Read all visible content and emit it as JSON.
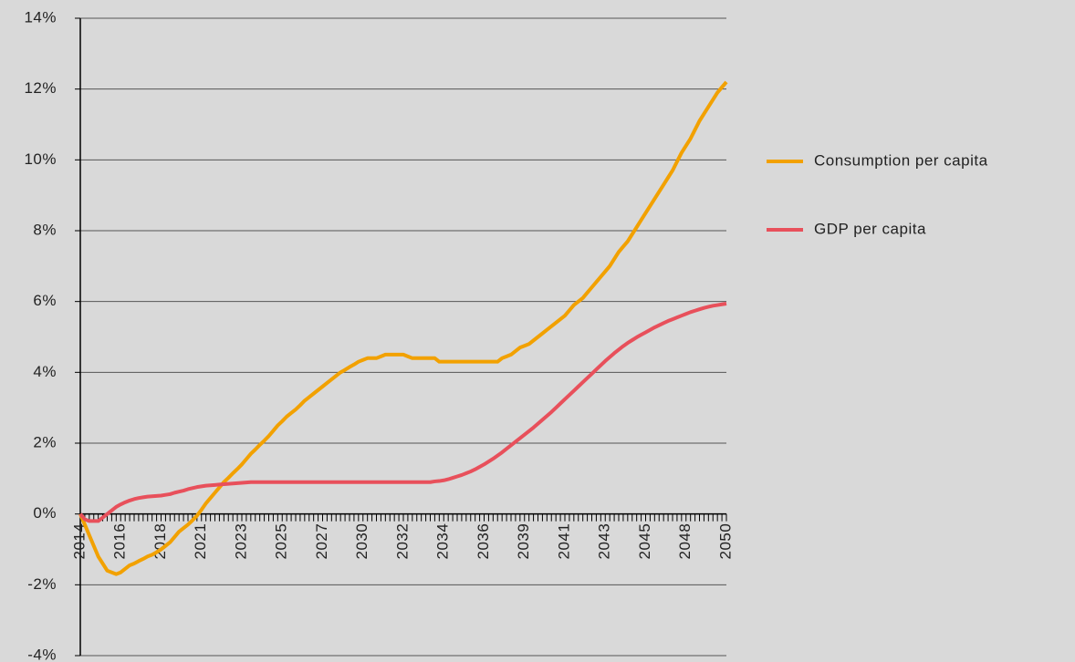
{
  "chart_data": {
    "type": "line",
    "categories": [
      "2014",
      null,
      null,
      null,
      null,
      null,
      null,
      null,
      null,
      "2016",
      null,
      null,
      null,
      null,
      null,
      null,
      null,
      null,
      "2018",
      null,
      null,
      null,
      null,
      null,
      null,
      null,
      null,
      "2021",
      null,
      null,
      null,
      null,
      null,
      null,
      null,
      null,
      "2023",
      null,
      null,
      null,
      null,
      null,
      null,
      null,
      null,
      "2025",
      null,
      null,
      null,
      null,
      null,
      null,
      null,
      null,
      "2027",
      null,
      null,
      null,
      null,
      null,
      null,
      null,
      null,
      "2030",
      null,
      null,
      null,
      null,
      null,
      null,
      null,
      null,
      "2032",
      null,
      null,
      null,
      null,
      null,
      null,
      null,
      null,
      "2034",
      null,
      null,
      null,
      null,
      null,
      null,
      null,
      null,
      "2036",
      null,
      null,
      null,
      null,
      null,
      null,
      null,
      null,
      "2039",
      null,
      null,
      null,
      null,
      null,
      null,
      null,
      null,
      "2041",
      null,
      null,
      null,
      null,
      null,
      null,
      null,
      null,
      "2043",
      null,
      null,
      null,
      null,
      null,
      null,
      null,
      null,
      "2045",
      null,
      null,
      null,
      null,
      null,
      null,
      null,
      null,
      "2048",
      null,
      null,
      null,
      null,
      null,
      null,
      null,
      null,
      "2050"
    ],
    "series": [
      {
        "name": "Consumption per capita",
        "color": "#f2a100",
        "values": [
          0,
          -0.3,
          -0.6,
          -0.9,
          -1.2,
          -1.4,
          -1.6,
          -1.65,
          -1.7,
          -1.65,
          -1.55,
          -1.45,
          -1.4,
          -1.33,
          -1.27,
          -1.2,
          -1.15,
          -1.08,
          -1.0,
          -0.9,
          -0.8,
          -0.65,
          -0.5,
          -0.4,
          -0.3,
          -0.18,
          -0.05,
          0.12,
          0.3,
          0.45,
          0.6,
          0.75,
          0.9,
          1.02,
          1.15,
          1.27,
          1.4,
          1.55,
          1.7,
          1.82,
          1.95,
          2.07,
          2.2,
          2.35,
          2.5,
          2.62,
          2.75,
          2.85,
          2.95,
          3.07,
          3.2,
          3.3,
          3.4,
          3.5,
          3.6,
          3.7,
          3.8,
          3.9,
          4.0,
          4.07,
          4.15,
          4.22,
          4.3,
          4.35,
          4.4,
          4.4,
          4.4,
          4.45,
          4.5,
          4.5,
          4.5,
          4.5,
          4.5,
          4.45,
          4.4,
          4.4,
          4.4,
          4.4,
          4.4,
          4.4,
          4.3,
          4.3,
          4.3,
          4.3,
          4.3,
          4.3,
          4.3,
          4.3,
          4.3,
          4.3,
          4.3,
          4.3,
          4.3,
          4.3,
          4.4,
          4.45,
          4.5,
          4.6,
          4.7,
          4.75,
          4.8,
          4.9,
          5.0,
          5.1,
          5.2,
          5.3,
          5.4,
          5.5,
          5.6,
          5.75,
          5.9,
          6.0,
          6.1,
          6.25,
          6.4,
          6.55,
          6.7,
          6.85,
          7.0,
          7.2,
          7.4,
          7.55,
          7.7,
          7.9,
          8.1,
          8.3,
          8.5,
          8.7,
          8.9,
          9.1,
          9.3,
          9.5,
          9.7,
          9.95,
          10.2,
          10.4,
          10.6,
          10.85,
          11.1,
          11.3,
          11.5,
          11.7,
          11.9,
          12.05,
          12.2
        ]
      },
      {
        "name": "GDP per capita",
        "color": "#e8505b",
        "values": [
          0,
          -0.15,
          -0.2,
          -0.2,
          -0.2,
          -0.1,
          0.0,
          0.1,
          0.2,
          0.27,
          0.33,
          0.38,
          0.42,
          0.45,
          0.47,
          0.49,
          0.5,
          0.51,
          0.52,
          0.54,
          0.56,
          0.6,
          0.63,
          0.66,
          0.7,
          0.73,
          0.76,
          0.78,
          0.8,
          0.81,
          0.82,
          0.83,
          0.84,
          0.85,
          0.86,
          0.87,
          0.88,
          0.89,
          0.9,
          0.9,
          0.9,
          0.9,
          0.9,
          0.9,
          0.9,
          0.9,
          0.9,
          0.9,
          0.9,
          0.9,
          0.9,
          0.9,
          0.9,
          0.9,
          0.9,
          0.9,
          0.9,
          0.9,
          0.9,
          0.9,
          0.9,
          0.9,
          0.9,
          0.9,
          0.9,
          0.9,
          0.9,
          0.9,
          0.9,
          0.9,
          0.9,
          0.9,
          0.9,
          0.9,
          0.9,
          0.9,
          0.9,
          0.9,
          0.9,
          0.92,
          0.93,
          0.95,
          0.98,
          1.02,
          1.06,
          1.1,
          1.15,
          1.2,
          1.26,
          1.33,
          1.4,
          1.48,
          1.56,
          1.65,
          1.74,
          1.84,
          1.94,
          2.04,
          2.14,
          2.24,
          2.34,
          2.44,
          2.55,
          2.66,
          2.77,
          2.88,
          3.0,
          3.12,
          3.24,
          3.36,
          3.48,
          3.6,
          3.72,
          3.84,
          3.96,
          4.08,
          4.2,
          4.32,
          4.43,
          4.54,
          4.64,
          4.74,
          4.83,
          4.91,
          4.99,
          5.06,
          5.13,
          5.2,
          5.27,
          5.33,
          5.39,
          5.45,
          5.5,
          5.55,
          5.6,
          5.65,
          5.7,
          5.74,
          5.78,
          5.82,
          5.85,
          5.88,
          5.9,
          5.92,
          5.94
        ]
      }
    ],
    "ylim": [
      -4,
      14
    ],
    "yticks": [
      {
        "value": -4,
        "label": "-4%"
      },
      {
        "value": -2,
        "label": "-2%"
      },
      {
        "value": 0,
        "label": "0%"
      },
      {
        "value": 2,
        "label": "2%"
      },
      {
        "value": 4,
        "label": "4%"
      },
      {
        "value": 6,
        "label": "6%"
      },
      {
        "value": 8,
        "label": "8%"
      },
      {
        "value": 10,
        "label": "10%"
      },
      {
        "value": 12,
        "label": "12%"
      },
      {
        "value": 14,
        "label": "14%"
      }
    ],
    "grid": true,
    "legend": "right"
  }
}
